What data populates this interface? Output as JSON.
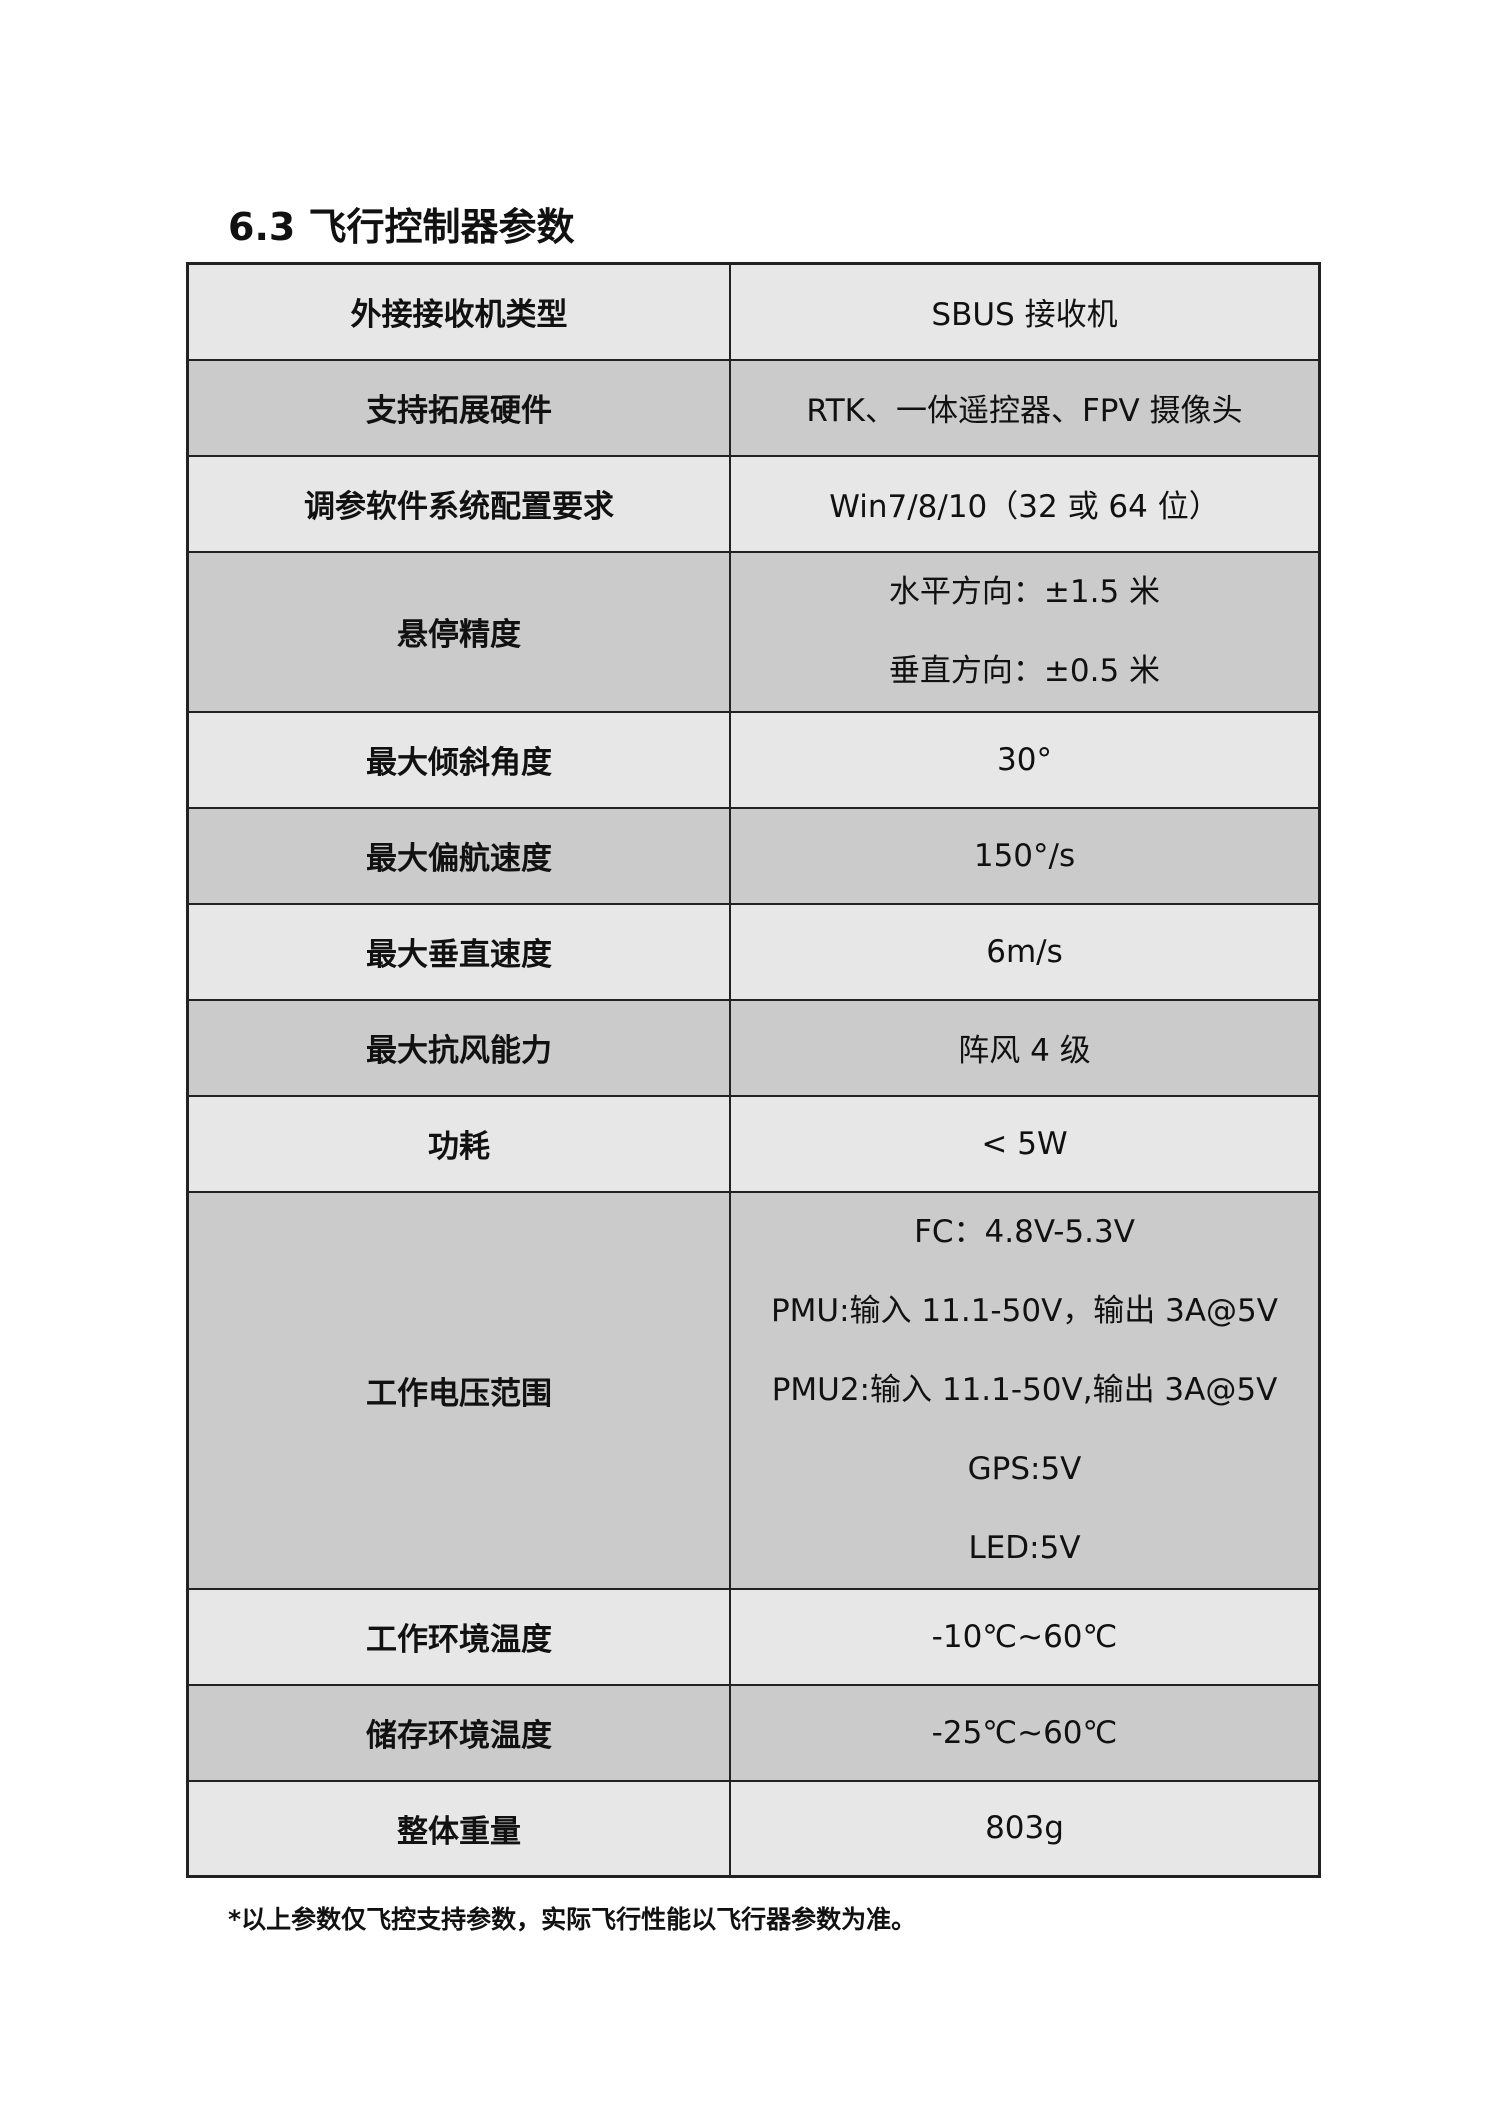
{
  "title": "6.3 飞行控制器参数",
  "rows": [
    {
      "label": "外接接收机类型",
      "values": [
        "SBUS 接收机"
      ]
    },
    {
      "label": "支持拓展硬件",
      "values": [
        "RTK、一体遥控器、FPV 摄像头"
      ]
    },
    {
      "label": "调参软件系统配置要求",
      "values": [
        "Win7/8/10（32 或 64 位）"
      ]
    },
    {
      "label": "悬停精度",
      "values": [
        "水平方向：±1.5 米",
        "垂直方向：±0.5 米"
      ]
    },
    {
      "label": "最大倾斜角度",
      "values": [
        "30°"
      ]
    },
    {
      "label": "最大偏航速度",
      "values": [
        "150°/s"
      ]
    },
    {
      "label": "最大垂直速度",
      "values": [
        "6m/s"
      ]
    },
    {
      "label": "最大抗风能力",
      "values": [
        "阵风 4 级"
      ]
    },
    {
      "label": "功耗",
      "values": [
        "< 5W"
      ]
    },
    {
      "label": "工作电压范围",
      "values": [
        "FC：4.8V-5.3V",
        "PMU:输入 11.1-50V，输出 3A@5V",
        "PMU2:输入 11.1-50V,输出 3A@5V",
        "GPS:5V",
        "LED:5V"
      ]
    },
    {
      "label": "工作环境温度",
      "values": [
        "-10℃~60℃"
      ]
    },
    {
      "label": "储存环境温度",
      "values": [
        "-25℃~60℃"
      ]
    },
    {
      "label": "整体重量",
      "values": [
        "803g"
      ]
    }
  ],
  "footnote": "*以上参数仅飞控支持参数，实际飞行性能以飞行器参数为准。",
  "colors": {
    "row_light": "#e7e7e7",
    "row_dark": "#cbcbcb",
    "border": "#222222"
  }
}
